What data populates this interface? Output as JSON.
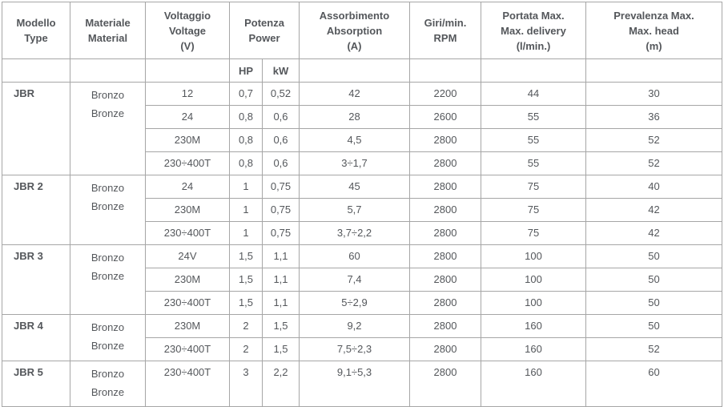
{
  "table": {
    "header": {
      "model": "Modello\nType",
      "material": "Materiale\nMaterial",
      "voltage": "Voltaggio\nVoltage\n(V)",
      "power": "Potenza\nPower",
      "power_sub": {
        "hp": "HP",
        "kw": "kW"
      },
      "absorption": "Assorbimento\nAbsorption\n(A)",
      "rpm": "Giri/min.\nRPM",
      "delivery": "Portata Max.\nMax. delivery\n(l/min.)",
      "head": "Prevalenza Max.\nMax. head\n(m)"
    },
    "text_color": "#54575b",
    "border_color": "#a6a6a6",
    "sections": [
      {
        "model": "JBR",
        "material": "Bronzo\nBronze",
        "rows": [
          {
            "voltage": "12",
            "hp": "0,7",
            "kw": "0,52",
            "absorption": "42",
            "rpm": "2200",
            "delivery": "44",
            "head": "30"
          },
          {
            "voltage": "24",
            "hp": "0,8",
            "kw": "0,6",
            "absorption": "28",
            "rpm": "2600",
            "delivery": "55",
            "head": "36"
          },
          {
            "voltage": "230M",
            "hp": "0,8",
            "kw": "0,6",
            "absorption": "4,5",
            "rpm": "2800",
            "delivery": "55",
            "head": "52"
          },
          {
            "voltage": "230÷400T",
            "hp": "0,8",
            "kw": "0,6",
            "absorption": "3÷1,7",
            "rpm": "2800",
            "delivery": "55",
            "head": "52"
          }
        ]
      },
      {
        "model": "JBR 2",
        "material": "Bronzo\nBronze",
        "rows": [
          {
            "voltage": "24",
            "hp": "1",
            "kw": "0,75",
            "absorption": "45",
            "rpm": "2800",
            "delivery": "75",
            "head": "40"
          },
          {
            "voltage": "230M",
            "hp": "1",
            "kw": "0,75",
            "absorption": "5,7",
            "rpm": "2800",
            "delivery": "75",
            "head": "42"
          },
          {
            "voltage": "230÷400T",
            "hp": "1",
            "kw": "0,75",
            "absorption": "3,7÷2,2",
            "rpm": "2800",
            "delivery": "75",
            "head": "42"
          }
        ]
      },
      {
        "model": "JBR 3",
        "material": "Bronzo\nBronze",
        "rows": [
          {
            "voltage": "24V",
            "hp": "1,5",
            "kw": "1,1",
            "absorption": "60",
            "rpm": "2800",
            "delivery": "100",
            "head": "50"
          },
          {
            "voltage": "230M",
            "hp": "1,5",
            "kw": "1,1",
            "absorption": "7,4",
            "rpm": "2800",
            "delivery": "100",
            "head": "50"
          },
          {
            "voltage": "230÷400T",
            "hp": "1,5",
            "kw": "1,1",
            "absorption": "5÷2,9",
            "rpm": "2800",
            "delivery": "100",
            "head": "50"
          }
        ]
      },
      {
        "model": "JBR 4",
        "material": "Bronzo\nBronze",
        "rows": [
          {
            "voltage": "230M",
            "hp": "2",
            "kw": "1,5",
            "absorption": "9,2",
            "rpm": "2800",
            "delivery": "160",
            "head": "50"
          },
          {
            "voltage": "230÷400T",
            "hp": "2",
            "kw": "1,5",
            "absorption": "7,5÷2,3",
            "rpm": "2800",
            "delivery": "160",
            "head": "52"
          }
        ]
      },
      {
        "model": "JBR 5",
        "material": "Bronzo\nBronze",
        "rows": [
          {
            "voltage": "230÷400T",
            "hp": "3",
            "kw": "2,2",
            "absorption": "9,1÷5,3",
            "rpm": "2800",
            "delivery": "160",
            "head": "60"
          }
        ]
      }
    ]
  }
}
